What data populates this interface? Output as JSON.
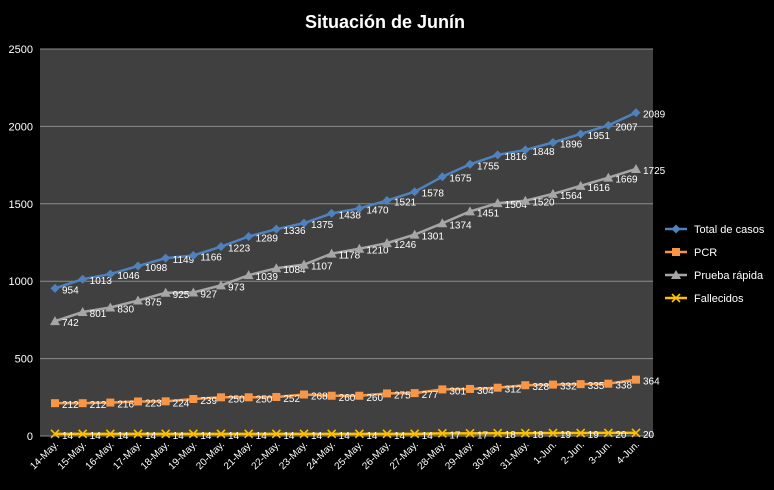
{
  "chart_data": {
    "type": "line",
    "title": "Situación de Junín",
    "xlabel": "",
    "ylabel": "",
    "ylim": [
      0,
      2500
    ],
    "yticks": [
      0,
      500,
      1000,
      1500,
      2000,
      2500
    ],
    "grid": true,
    "legend_position": "right",
    "categories": [
      "14-May.",
      "15-May.",
      "16-May.",
      "17-May.",
      "18-May.",
      "19-May.",
      "20-May.",
      "21-May.",
      "22-May.",
      "23-May.",
      "24-May.",
      "25-May.",
      "26-May.",
      "27-May.",
      "28-May.",
      "29-May.",
      "30-May.",
      "31-May.",
      "1-Jun.",
      "2-Jun.",
      "3-Jun.",
      "4-Jun."
    ],
    "series": [
      {
        "name": "Total de casos",
        "color": "#4f81bd",
        "marker": "diamond",
        "values": [
          954,
          1013,
          1046,
          1098,
          1149,
          1166,
          1223,
          1289,
          1336,
          1375,
          1438,
          1470,
          1521,
          1578,
          1675,
          1755,
          1816,
          1848,
          1896,
          1951,
          2007,
          2089
        ]
      },
      {
        "name": "PCR",
        "color": "#f79646",
        "marker": "square",
        "values": [
          212,
          212,
          216,
          223,
          224,
          239,
          250,
          250,
          252,
          268,
          260,
          260,
          275,
          277,
          301,
          304,
          312,
          328,
          332,
          335,
          338,
          364
        ]
      },
      {
        "name": "Prueba rápida",
        "color": "#a6a6a6",
        "marker": "triangle",
        "values": [
          742,
          801,
          830,
          875,
          925,
          927,
          973,
          1039,
          1084,
          1107,
          1178,
          1210,
          1246,
          1301,
          1374,
          1451,
          1504,
          1520,
          1564,
          1616,
          1669,
          1725
        ]
      },
      {
        "name": "Fallecidos",
        "color": "#ffc000",
        "marker": "x",
        "label_color": "#ff0000",
        "values": [
          14,
          14,
          14,
          14,
          14,
          14,
          14,
          14,
          14,
          14,
          14,
          14,
          14,
          14,
          17,
          17,
          18,
          18,
          19,
          19,
          20,
          20
        ]
      }
    ]
  }
}
